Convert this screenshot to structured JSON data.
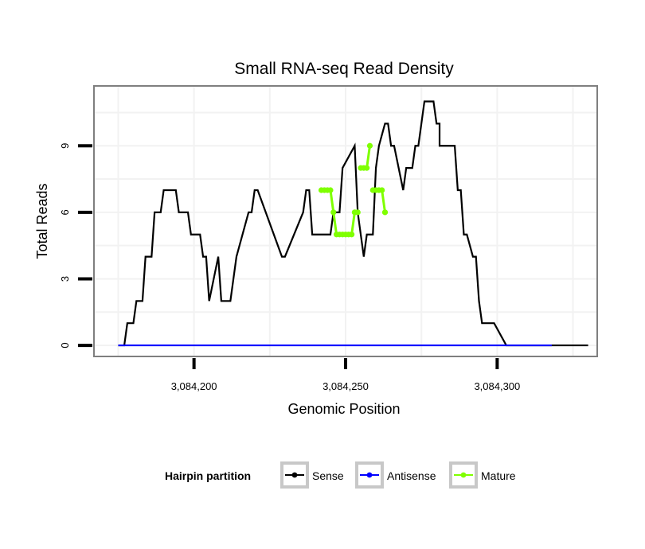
{
  "chart_data": {
    "type": "line",
    "title": "Small RNA-seq Read Density",
    "xlabel": "Genomic Position",
    "ylabel": "Total Reads",
    "xlim": [
      3084167,
      3084333
    ],
    "ylim": [
      -0.5,
      11.7
    ],
    "x_ticks": [
      {
        "value": 3084200,
        "label": "3,084,200"
      },
      {
        "value": 3084250,
        "label": "3,084,250"
      },
      {
        "value": 3084300,
        "label": "3,084,300"
      }
    ],
    "y_ticks": [
      {
        "value": 0,
        "label": "0"
      },
      {
        "value": 3,
        "label": "3"
      },
      {
        "value": 6,
        "label": "6"
      },
      {
        "value": 9,
        "label": "9"
      }
    ],
    "grid": true,
    "legend": {
      "title": "Hairpin partition",
      "position": "bottom",
      "entries": [
        {
          "name": "Sense",
          "color": "#000000"
        },
        {
          "name": "Antisense",
          "color": "#0000ff"
        },
        {
          "name": "Mature",
          "color": "#7fff00"
        }
      ]
    },
    "series": [
      {
        "name": "Sense",
        "color": "#000000",
        "x": [
          3084175,
          3084177,
          3084178,
          3084180,
          3084181,
          3084183,
          3084184,
          3084186,
          3084187,
          3084189,
          3084190,
          3084194,
          3084195,
          3084198,
          3084199,
          3084202,
          3084203,
          3084204,
          3084205,
          3084208,
          3084209,
          3084210,
          3084211,
          3084212,
          3084214,
          3084218,
          3084219,
          3084220,
          3084221,
          3084229,
          3084230,
          3084236,
          3084237,
          3084238,
          3084239,
          3084240,
          3084241,
          3084245,
          3084246,
          3084248,
          3084249,
          3084253,
          3084254,
          3084256,
          3084257,
          3084258,
          3084259,
          3084260,
          3084261,
          3084263,
          3084264,
          3084265,
          3084266,
          3084269,
          3084270,
          3084272,
          3084273,
          3084274,
          3084275,
          3084276,
          3084277,
          3084278,
          3084279,
          3084280,
          3084281,
          3084281,
          3084286,
          3084287,
          3084288,
          3084288,
          3084289,
          3084290,
          3084292,
          3084293,
          3084293,
          3084294,
          3084295,
          3084298,
          3084299,
          3084303,
          3084304,
          3084305,
          3084311,
          3084312,
          3084330
        ],
        "y": [
          0,
          0,
          1,
          1,
          2,
          2,
          4,
          4,
          6,
          6,
          7,
          7,
          6,
          6,
          5,
          5,
          4,
          4,
          2,
          4,
          2,
          2,
          2,
          2,
          4,
          6,
          6,
          7,
          7,
          4,
          4,
          6,
          7,
          7,
          5,
          5,
          5,
          5,
          6,
          6,
          8,
          9,
          6,
          4,
          5,
          5,
          5,
          8,
          9,
          10,
          10,
          9,
          9,
          7,
          8,
          8,
          9,
          9,
          10,
          11,
          11,
          11,
          11,
          10,
          10,
          9,
          9,
          7,
          7,
          7,
          5,
          5,
          4,
          4,
          4,
          2,
          1,
          1,
          1,
          0,
          0,
          0,
          0,
          0,
          0
        ]
      },
      {
        "name": "Antisense",
        "color": "#0000ff",
        "x": [
          3084175,
          3084318
        ],
        "y": [
          0,
          0
        ]
      },
      {
        "name": "Mature",
        "color": "#7fff00",
        "x": [
          3084242,
          3084243,
          3084244,
          3084245,
          3084246,
          3084247,
          3084248,
          3084249,
          3084250,
          3084251,
          3084252,
          3084253,
          3084254,
          3084255,
          3084256,
          3084257,
          3084258,
          3084259,
          3084260,
          3084261,
          3084262,
          3084263
        ],
        "y": [
          7,
          7,
          7,
          7,
          6,
          5,
          5,
          5,
          5,
          5,
          5,
          6,
          6,
          8,
          8,
          8,
          9,
          7,
          7,
          7,
          7,
          6
        ]
      }
    ]
  }
}
